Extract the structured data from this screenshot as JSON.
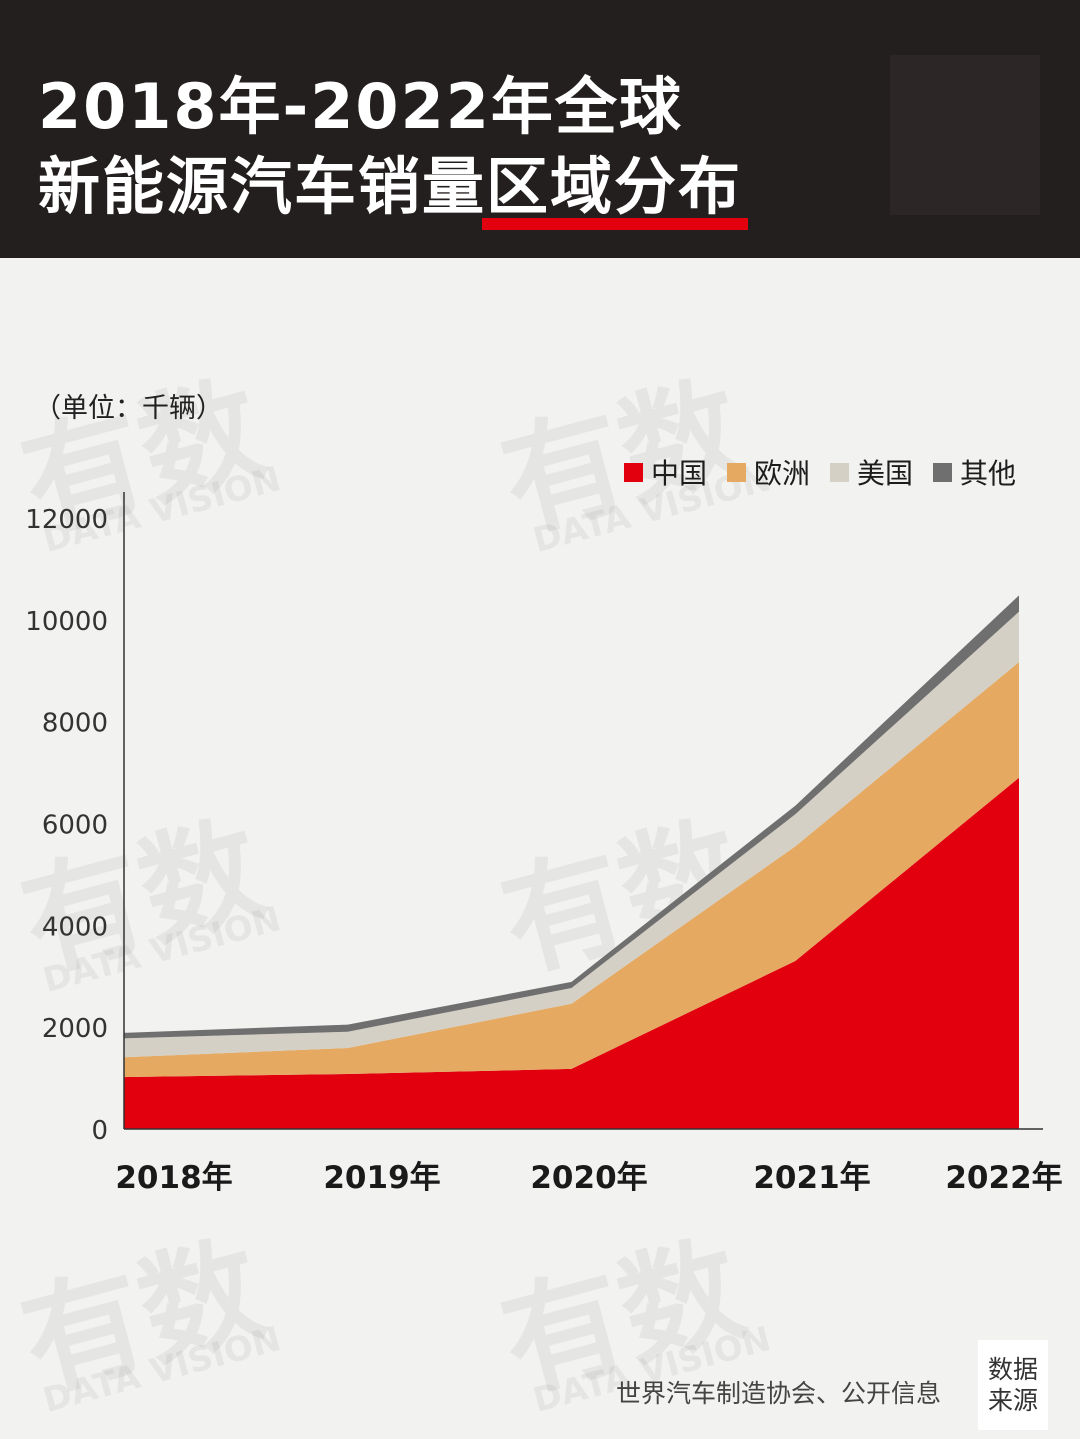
{
  "header": {
    "title_line1": "2018年-2022年全球",
    "title_line2_prefix": "新能源汽车销量",
    "title_line2_highlight": "区域分布"
  },
  "unit_label": "（单位：千辆）",
  "source": {
    "tag_line1": "数据",
    "tag_line2": "来源",
    "text": "世界汽车制造协会、公开信息"
  },
  "watermark": {
    "cn": "有数",
    "en": "DATA VISION"
  },
  "colors": {
    "china": "#e2000f",
    "europe": "#e5a962",
    "usa": "#d5d0c5",
    "other": "#6f6f6f",
    "header_bg": "#231f1e",
    "background": "#f2f2f1"
  },
  "chart_data": {
    "type": "area",
    "stacked": true,
    "categories": [
      "2018年",
      "2019年",
      "2020年",
      "2021年",
      "2022年"
    ],
    "series": [
      {
        "name": "中国",
        "values": [
          1020,
          1080,
          1180,
          3300,
          6900
        ]
      },
      {
        "name": "欧洲",
        "values": [
          390,
          510,
          1280,
          2250,
          2270
        ]
      },
      {
        "name": "美国",
        "values": [
          370,
          320,
          310,
          630,
          990
        ]
      },
      {
        "name": "其他",
        "values": [
          110,
          140,
          120,
          170,
          320
        ]
      }
    ],
    "ylim": [
      0,
      12000
    ],
    "yticks": [
      "0",
      "2000",
      "4000",
      "6000",
      "8000",
      "10000",
      "12000"
    ],
    "legend_position": "top-right",
    "grid": false
  }
}
